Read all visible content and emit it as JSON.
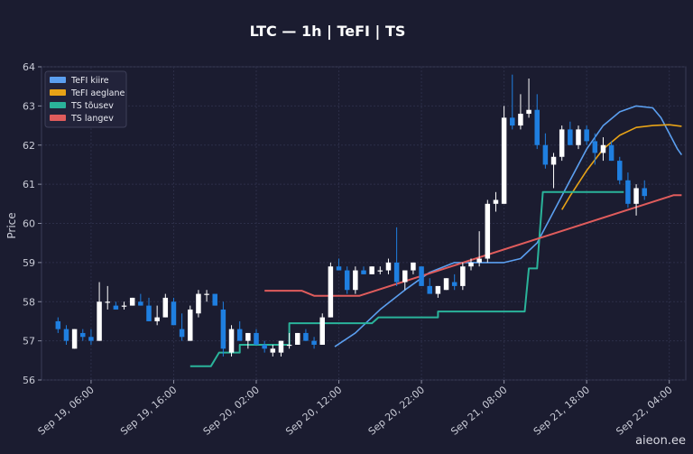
{
  "chart_data": {
    "type": "candlestick",
    "title": "LTC — 1h  |  TeFI  |  TS",
    "ylabel": "Price",
    "xlabel": "",
    "ylim": [
      56,
      64
    ],
    "y_ticks": [
      56,
      57,
      58,
      59,
      60,
      61,
      62,
      63,
      64
    ],
    "x_range": [
      0,
      78
    ],
    "x_ticks": [
      {
        "x": 6,
        "label": "Sep 19, 06:00"
      },
      {
        "x": 16,
        "label": "Sep 19, 16:00"
      },
      {
        "x": 26,
        "label": "Sep 20, 02:00"
      },
      {
        "x": 36,
        "label": "Sep 20, 12:00"
      },
      {
        "x": 46,
        "label": "Sep 20, 22:00"
      },
      {
        "x": 56,
        "label": "Sep 21, 08:00"
      },
      {
        "x": 66,
        "label": "Sep 21, 18:00"
      },
      {
        "x": 76,
        "label": "Sep 22, 04:00"
      }
    ],
    "grid": true,
    "legend_position": "top-left",
    "colors": {
      "up": "#ffffff",
      "down": "#1f7fe0",
      "tefi_fast": "#5b9ff0",
      "tefi_slow": "#e8a317",
      "ts_up": "#2ab39a",
      "ts_down": "#e05c5c"
    },
    "candles_ohlc": [
      [
        57.5,
        57.6,
        57.2,
        57.3
      ],
      [
        57.3,
        57.4,
        56.9,
        57.0
      ],
      [
        56.8,
        57.3,
        56.8,
        57.3
      ],
      [
        57.2,
        57.3,
        57.0,
        57.1
      ],
      [
        57.1,
        57.3,
        56.9,
        57.0
      ],
      [
        57.0,
        58.5,
        57.0,
        58.0
      ],
      [
        58.0,
        58.4,
        57.8,
        58.0
      ],
      [
        57.9,
        58.0,
        57.8,
        57.8
      ],
      [
        57.9,
        58.0,
        57.8,
        57.9
      ],
      [
        57.9,
        58.1,
        57.9,
        58.1
      ],
      [
        58.0,
        58.2,
        57.9,
        57.9
      ],
      [
        57.9,
        58.1,
        57.5,
        57.5
      ],
      [
        57.5,
        57.9,
        57.4,
        57.6
      ],
      [
        57.6,
        58.2,
        57.6,
        58.1
      ],
      [
        58.0,
        58.1,
        57.4,
        57.4
      ],
      [
        57.3,
        57.7,
        57.0,
        57.1
      ],
      [
        57.0,
        57.9,
        57.0,
        57.8
      ],
      [
        57.7,
        58.3,
        57.6,
        58.2
      ],
      [
        58.2,
        58.3,
        58.0,
        58.2
      ],
      [
        58.2,
        58.1,
        57.9,
        57.9
      ],
      [
        57.8,
        58.0,
        56.6,
        56.8
      ],
      [
        56.7,
        57.4,
        56.6,
        57.3
      ],
      [
        57.3,
        57.5,
        57.0,
        57.0
      ],
      [
        57.0,
        57.2,
        56.8,
        57.2
      ],
      [
        57.2,
        57.3,
        56.9,
        56.9
      ],
      [
        56.9,
        57.0,
        56.7,
        56.8
      ],
      [
        56.7,
        56.9,
        56.6,
        56.8
      ],
      [
        56.7,
        57.0,
        56.6,
        57.0
      ],
      [
        56.9,
        57.2,
        56.8,
        56.9
      ],
      [
        56.9,
        57.2,
        56.9,
        57.2
      ],
      [
        57.2,
        57.3,
        57.0,
        57.0
      ],
      [
        57.0,
        57.1,
        56.8,
        56.9
      ],
      [
        56.9,
        57.7,
        56.9,
        57.6
      ],
      [
        57.6,
        59.0,
        57.6,
        58.9
      ],
      [
        58.9,
        59.1,
        58.8,
        58.8
      ],
      [
        58.8,
        58.9,
        58.2,
        58.3
      ],
      [
        58.3,
        58.9,
        58.2,
        58.8
      ],
      [
        58.8,
        58.9,
        58.7,
        58.7
      ],
      [
        58.7,
        58.9,
        58.7,
        58.9
      ],
      [
        58.8,
        58.9,
        58.7,
        58.8
      ],
      [
        58.8,
        59.1,
        58.7,
        59.0
      ],
      [
        59.0,
        59.9,
        58.4,
        58.5
      ],
      [
        58.5,
        58.8,
        58.3,
        58.8
      ],
      [
        58.8,
        59.0,
        58.7,
        59.0
      ],
      [
        58.9,
        58.9,
        58.4,
        58.4
      ],
      [
        58.4,
        58.6,
        58.2,
        58.2
      ],
      [
        58.2,
        58.4,
        58.1,
        58.4
      ],
      [
        58.3,
        58.6,
        58.3,
        58.6
      ],
      [
        58.5,
        58.7,
        58.3,
        58.4
      ],
      [
        58.4,
        59.0,
        58.3,
        58.9
      ],
      [
        58.9,
        59.1,
        58.8,
        59.0
      ],
      [
        59.0,
        59.8,
        58.9,
        59.1
      ],
      [
        59.1,
        60.6,
        59.0,
        60.5
      ],
      [
        60.5,
        60.8,
        60.3,
        60.6
      ],
      [
        60.5,
        63.0,
        60.5,
        62.7
      ],
      [
        62.7,
        63.8,
        62.4,
        62.5
      ],
      [
        62.5,
        63.3,
        62.4,
        62.8
      ],
      [
        62.8,
        63.7,
        62.7,
        62.9
      ],
      [
        62.9,
        63.3,
        61.9,
        62.0
      ],
      [
        62.0,
        62.3,
        61.4,
        61.5
      ],
      [
        61.5,
        61.8,
        60.9,
        61.7
      ],
      [
        61.7,
        62.5,
        61.6,
        62.4
      ],
      [
        62.4,
        62.6,
        62.0,
        62.0
      ],
      [
        62.0,
        62.5,
        61.9,
        62.4
      ],
      [
        62.4,
        62.5,
        62.0,
        62.1
      ],
      [
        62.1,
        62.3,
        61.5,
        61.8
      ],
      [
        61.8,
        62.2,
        61.6,
        62.0
      ],
      [
        62.0,
        62.1,
        61.6,
        61.6
      ],
      [
        61.6,
        61.7,
        61.0,
        61.1
      ],
      [
        61.1,
        61.3,
        60.4,
        60.5
      ],
      [
        60.5,
        61.0,
        60.2,
        60.9
      ],
      [
        60.9,
        61.1,
        60.6,
        60.7
      ]
    ],
    "candle_x_start": 2,
    "series": [
      {
        "name": "TeFI kiire",
        "type": "line",
        "color": "#5b9ff0",
        "points": [
          [
            35.5,
            56.85
          ],
          [
            38,
            57.2
          ],
          [
            41,
            57.8
          ],
          [
            44,
            58.3
          ],
          [
            47,
            58.75
          ],
          [
            50,
            59.0
          ],
          [
            53,
            59.0
          ],
          [
            56,
            59.0
          ],
          [
            58,
            59.1
          ],
          [
            60,
            59.5
          ],
          [
            62,
            60.3
          ],
          [
            64,
            61.1
          ],
          [
            66,
            61.9
          ],
          [
            68,
            62.5
          ],
          [
            70,
            62.85
          ],
          [
            72,
            63.0
          ],
          [
            74,
            62.95
          ],
          [
            75,
            62.7
          ],
          [
            76,
            62.3
          ],
          [
            77,
            61.9
          ],
          [
            77.5,
            61.75
          ]
        ]
      },
      {
        "name": "TeFI aeglane",
        "type": "line",
        "color": "#e8a317",
        "points": [
          [
            63,
            60.35
          ],
          [
            64,
            60.7
          ],
          [
            66,
            61.35
          ],
          [
            68,
            61.9
          ],
          [
            70,
            62.25
          ],
          [
            72,
            62.45
          ],
          [
            74,
            62.5
          ],
          [
            76,
            62.52
          ],
          [
            77.5,
            62.48
          ]
        ]
      },
      {
        "name": "TS tõusev",
        "type": "step",
        "color": "#2ab39a",
        "points": [
          [
            18,
            56.35
          ],
          [
            20.5,
            56.35
          ],
          [
            21.5,
            56.7
          ],
          [
            24,
            56.7
          ],
          [
            24,
            56.9
          ],
          [
            30,
            56.9
          ],
          [
            30,
            57.45
          ],
          [
            40,
            57.45
          ],
          [
            40.8,
            57.6
          ],
          [
            48,
            57.6
          ],
          [
            48,
            57.75
          ],
          [
            58.5,
            57.75
          ],
          [
            59,
            58.85
          ],
          [
            60,
            58.85
          ],
          [
            60.7,
            60.8
          ],
          [
            70,
            60.8
          ],
          [
            70.5,
            60.8
          ]
        ]
      },
      {
        "name": "TS langev",
        "type": "step",
        "color": "#e05c5c",
        "points": [
          [
            27,
            58.28
          ],
          [
            31.5,
            58.28
          ],
          [
            33,
            58.15
          ],
          [
            38.5,
            58.15
          ],
          [
            76.5,
            60.72
          ],
          [
            77.5,
            60.72
          ]
        ]
      }
    ]
  },
  "watermark": "aieon.ee"
}
